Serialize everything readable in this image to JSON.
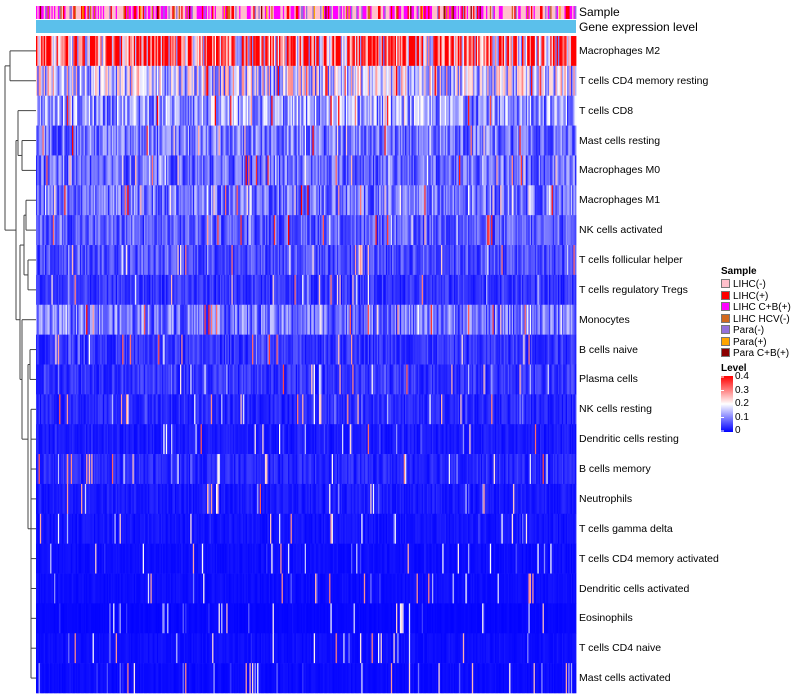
{
  "chart_data": {
    "type": "heatmap",
    "title": "",
    "annotation_tracks": [
      "Sample",
      "Gene expression level"
    ],
    "rows": [
      {
        "name": "Macrophages M2",
        "mean": 0.33
      },
      {
        "name": "T cells CD4 memory resting",
        "mean": 0.17
      },
      {
        "name": "T cells CD8",
        "mean": 0.12
      },
      {
        "name": "Mast cells resting",
        "mean": 0.09
      },
      {
        "name": "Macrophages M0",
        "mean": 0.08
      },
      {
        "name": "Macrophages M1",
        "mean": 0.09
      },
      {
        "name": "NK cells activated",
        "mean": 0.07
      },
      {
        "name": "T cells follicular helper",
        "mean": 0.06
      },
      {
        "name": "T cells regulatory  Tregs",
        "mean": 0.04
      },
      {
        "name": "Monocytes",
        "mean": 0.09
      },
      {
        "name": "B cells naive",
        "mean": 0.04
      },
      {
        "name": "Plasma cells",
        "mean": 0.04
      },
      {
        "name": "NK cells resting",
        "mean": 0.03
      },
      {
        "name": "Dendritic cells resting",
        "mean": 0.02
      },
      {
        "name": "B cells memory",
        "mean": 0.03
      },
      {
        "name": "Neutrophils",
        "mean": 0.02
      },
      {
        "name": "T cells gamma delta",
        "mean": 0.015
      },
      {
        "name": "T cells CD4 memory activated",
        "mean": 0.01
      },
      {
        "name": "Dendritic cells activated",
        "mean": 0.01
      },
      {
        "name": "Eosinophils",
        "mean": 0.005
      },
      {
        "name": "T cells CD4 naive",
        "mean": 0.01
      },
      {
        "name": "Mast cells activated",
        "mean": 0.008
      }
    ],
    "n_samples": 420,
    "color_scale": {
      "min": 0,
      "max": 0.4,
      "colors": [
        "#0000ff",
        "#ffffff",
        "#ff0000"
      ]
    },
    "legend": {
      "position": "right",
      "sample": {
        "title": "Sample",
        "items": [
          {
            "label": "LIHC(-)",
            "color": "#ffc0cb"
          },
          {
            "label": "LIHC(+)",
            "color": "#ff0000"
          },
          {
            "label": "LIHC C+B(+)",
            "color": "#ff00ff"
          },
          {
            "label": "LIHC HCV(-)",
            "color": "#d2691e"
          },
          {
            "label": "Para(-)",
            "color": "#9370db"
          },
          {
            "label": "Para(+)",
            "color": "#ffa500"
          },
          {
            "label": "Para C+B(+)",
            "color": "#8b0000"
          }
        ]
      },
      "level": {
        "title": "Level",
        "ticks": [
          "0.4",
          "0.3",
          "0.2",
          "0.1",
          "0"
        ]
      }
    },
    "gene_expression_color": "#5bc0eb"
  }
}
